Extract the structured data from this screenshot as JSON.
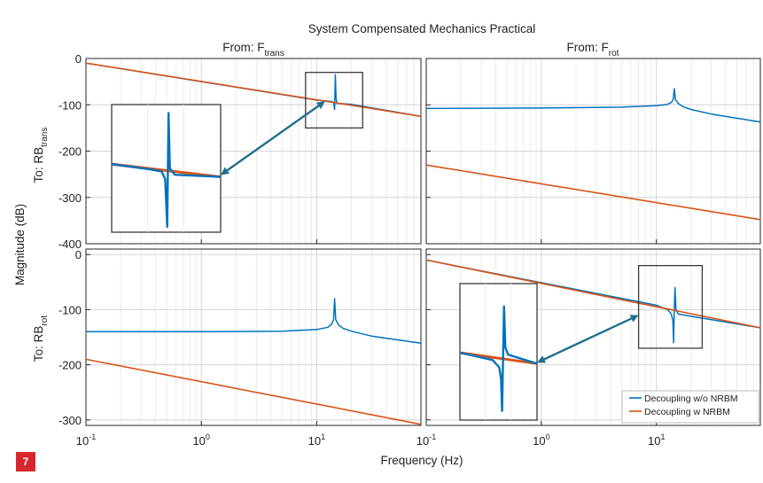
{
  "figure_label": "7",
  "chart_data": {
    "type": "line",
    "title": "System Compensated Mechanics Practical",
    "xlabel": "Frequency (Hz)",
    "ylabel": "Magnitude (dB)",
    "x_scale": "log",
    "xlim": [
      0.1,
      80
    ],
    "x_ticks": [
      0.1,
      1,
      10
    ],
    "x_tick_labels": [
      {
        "base": "10",
        "exp": "-1"
      },
      {
        "base": "10",
        "exp": "0"
      },
      {
        "base": "10",
        "exp": "1"
      }
    ],
    "grid": true,
    "legend_position": "bottom-right",
    "legend": [
      {
        "label": "Decoupling w/o NRBM",
        "color": "#0072bd"
      },
      {
        "label": "Decoupling w NRBM",
        "color": "#d95319"
      }
    ],
    "columns": [
      {
        "prefix": "From: F",
        "sub": "trans"
      },
      {
        "prefix": "From: F",
        "sub": "rot"
      }
    ],
    "rows": [
      {
        "prefix": "To: RB",
        "sub": "trans"
      },
      {
        "prefix": "To: RB",
        "sub": "rot"
      }
    ],
    "panels": [
      {
        "row": 0,
        "col": 0,
        "ylim": [
          -400,
          0
        ],
        "y_ticks": [
          0,
          -100,
          -200,
          -300,
          -400
        ],
        "y_tick_labels": [
          "0",
          "-100",
          "-200",
          "-300",
          "-400"
        ],
        "series": [
          {
            "legend": 0,
            "x": [
              0.1,
              10,
              12.5,
              13.5,
              14,
              14.3,
              14.5,
              14.7,
              15,
              16,
              20,
              80
            ],
            "y": [
              -10,
              -90,
              -92,
              -93,
              -95,
              -110,
              -35,
              -86,
              -97,
              -97,
              -99,
              -125
            ]
          },
          {
            "legend": 1,
            "x": [
              0.1,
              80
            ],
            "y": [
              -10,
              -125
            ]
          }
        ],
        "inset": {
          "source": {
            "x": [
              8,
              25
            ],
            "y": [
              -150,
              -30
            ]
          },
          "target": {
            "y": [
              -380,
              -120
            ]
          },
          "series": [
            {
              "legend": 0,
              "x": [
                8,
                12,
                13.5,
                14,
                14.3,
                14.5,
                14.7,
                15.5,
                25
              ],
              "y": [
                -86,
                -91,
                -93,
                -100,
                -145,
                -38,
                -90,
                -96,
                -98
              ]
            },
            {
              "legend": 1,
              "x": [
                8,
                25
              ],
              "y": [
                -86,
                -98
              ]
            }
          ]
        }
      },
      {
        "row": 0,
        "col": 1,
        "ylim": [
          -400,
          0
        ],
        "y_ticks": [
          0,
          -100,
          -200,
          -300,
          -400
        ],
        "y_tick_labels": [],
        "series": [
          {
            "legend": 0,
            "x": [
              0.1,
              1,
              5,
              10,
              12.5,
              13.5,
              14,
              14.3,
              14.6,
              15.5,
              17,
              20,
              30,
              80
            ],
            "y": [
              -108,
              -107,
              -105,
              -102,
              -99,
              -95,
              -88,
              -65,
              -88,
              -97,
              -104,
              -110,
              -120,
              -137
            ]
          },
          {
            "legend": 1,
            "x": [
              0.1,
              80
            ],
            "y": [
              -230,
              -348
            ]
          }
        ]
      },
      {
        "row": 1,
        "col": 0,
        "ylim": [
          -310,
          10
        ],
        "y_ticks": [
          0,
          -100,
          -200,
          -300
        ],
        "y_tick_labels": [
          "0",
          "-100",
          "-200",
          "-300"
        ],
        "series": [
          {
            "legend": 0,
            "x": [
              0.1,
              1,
              5,
              10,
              12.5,
              13.5,
              14,
              14.3,
              14.6,
              15.5,
              17,
              20,
              30,
              80
            ],
            "y": [
              -140,
              -140,
              -139,
              -136,
              -132,
              -126,
              -118,
              -80,
              -118,
              -128,
              -134,
              -139,
              -148,
              -161
            ]
          },
          {
            "legend": 1,
            "x": [
              0.1,
              80
            ],
            "y": [
              -190,
              -308
            ]
          }
        ]
      },
      {
        "row": 1,
        "col": 1,
        "ylim": [
          -310,
          10
        ],
        "y_ticks": [
          0,
          -100,
          -200,
          -300
        ],
        "y_tick_labels": [],
        "series": [
          {
            "legend": 0,
            "x": [
              0.1,
              10,
              12.5,
              13.5,
              13.9,
              14.1,
              14.3,
              14.5,
              14.8,
              15.5,
              20,
              80
            ],
            "y": [
              -10,
              -92,
              -100,
              -108,
              -120,
              -160,
              -100,
              -60,
              -100,
              -108,
              -112,
              -133
            ]
          },
          {
            "legend": 1,
            "x": [
              0.1,
              80
            ],
            "y": [
              -10,
              -133
            ]
          }
        ],
        "inset": {
          "source": {
            "x": [
              7,
              25
            ],
            "y": [
              -170,
              -20
            ]
          },
          "target": {
            "y": [
              -300,
              -55
            ]
          },
          "series": [
            {
              "legend": 0,
              "x": [
                7,
                12,
                13.4,
                13.8,
                14.05,
                14.3,
                14.5,
                14.8,
                15.5,
                25
              ],
              "y": [
                -96,
                -104,
                -112,
                -125,
                -160,
                -95,
                -45,
                -90,
                -98,
                -108
              ]
            },
            {
              "legend": 1,
              "x": [
                7,
                25
              ],
              "y": [
                -96,
                -108
              ]
            }
          ]
        }
      }
    ]
  }
}
